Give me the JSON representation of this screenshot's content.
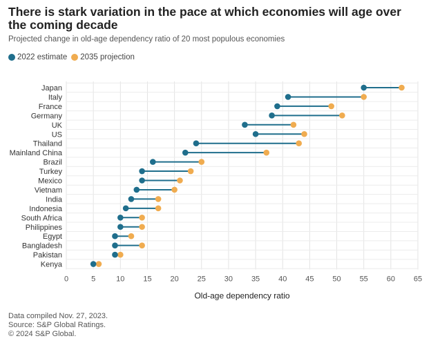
{
  "title": "There is stark variation in the pace at which economies will age over the coming decade",
  "subtitle": "Projected change in old-age dependency ratio of 20 most populous economies",
  "legend": [
    {
      "label": "2022 estimate",
      "color": "#1f6e8c"
    },
    {
      "label": "2035 projection",
      "color": "#f0ac50"
    }
  ],
  "footer": {
    "line1": "Data compiled Nov. 27, 2023.",
    "line2": "Source: S&P Global Ratings.",
    "line3": "© 2024 S&P Global."
  },
  "chart_data": {
    "type": "dumbbell",
    "title": "There is stark variation in the pace at which economies will age over the coming decade",
    "subtitle": "Projected change in old-age dependency ratio of 20 most populous economies",
    "xlabel": "Old-age dependency ratio",
    "ylabel": "",
    "xlim": [
      0,
      65
    ],
    "xticks": [
      0,
      5,
      10,
      15,
      20,
      25,
      30,
      35,
      40,
      45,
      50,
      55,
      60,
      65
    ],
    "grid": true,
    "legend_position": "top-left",
    "categories": [
      "Japan",
      "Italy",
      "France",
      "Germany",
      "UK",
      "US",
      "Thailand",
      "Mainland China",
      "Brazil",
      "Turkey",
      "Mexico",
      "Vietnam",
      "India",
      "Indonesia",
      "South Africa",
      "Philippines",
      "Egypt",
      "Bangladesh",
      "Pakistan",
      "Kenya"
    ],
    "series": [
      {
        "name": "2022 estimate",
        "color": "#1f6e8c",
        "values": [
          55,
          41,
          39,
          38,
          33,
          35,
          24,
          22,
          16,
          14,
          14,
          13,
          12,
          11,
          10,
          10,
          9,
          9,
          9,
          5
        ]
      },
      {
        "name": "2035 projection",
        "color": "#f0ac50",
        "values": [
          62,
          55,
          49,
          51,
          42,
          44,
          43,
          37,
          25,
          23,
          21,
          20,
          17,
          17,
          14,
          14,
          12,
          14,
          10,
          6
        ]
      }
    ]
  }
}
